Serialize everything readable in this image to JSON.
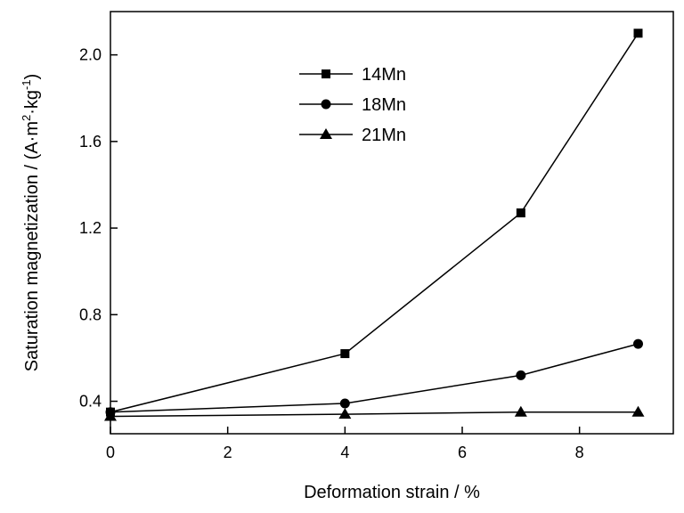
{
  "chart_data": {
    "type": "line",
    "xlabel": "Deformation strain / %",
    "ylabel_main": "Saturation magnetization / (A·m",
    "ylabel_sup1": "2",
    "ylabel_mid": "·kg",
    "ylabel_sup2": "-1",
    "ylabel_end": ")",
    "xlim": [
      0,
      9.6
    ],
    "ylim": [
      0.25,
      2.2
    ],
    "xticks": [
      0,
      2,
      4,
      6,
      8
    ],
    "xtick_labels": [
      "0",
      "2",
      "4",
      "6",
      "8"
    ],
    "yticks": [
      0.4,
      0.8,
      1.2,
      1.6,
      2.0
    ],
    "ytick_labels": [
      "0.4",
      "0.8",
      "1.2",
      "1.6",
      "2.0"
    ],
    "grid": false,
    "legend_position": "top-center",
    "series": [
      {
        "name": "14Mn",
        "marker": "square",
        "x": [
          0,
          4,
          7,
          9
        ],
        "y": [
          0.35,
          0.62,
          1.27,
          2.1
        ]
      },
      {
        "name": "18Mn",
        "marker": "circle",
        "x": [
          0,
          4,
          7,
          9
        ],
        "y": [
          0.35,
          0.39,
          0.52,
          0.665
        ]
      },
      {
        "name": "21Mn",
        "marker": "triangle",
        "x": [
          0,
          4,
          7,
          9
        ],
        "y": [
          0.33,
          0.34,
          0.35,
          0.35
        ]
      }
    ]
  }
}
